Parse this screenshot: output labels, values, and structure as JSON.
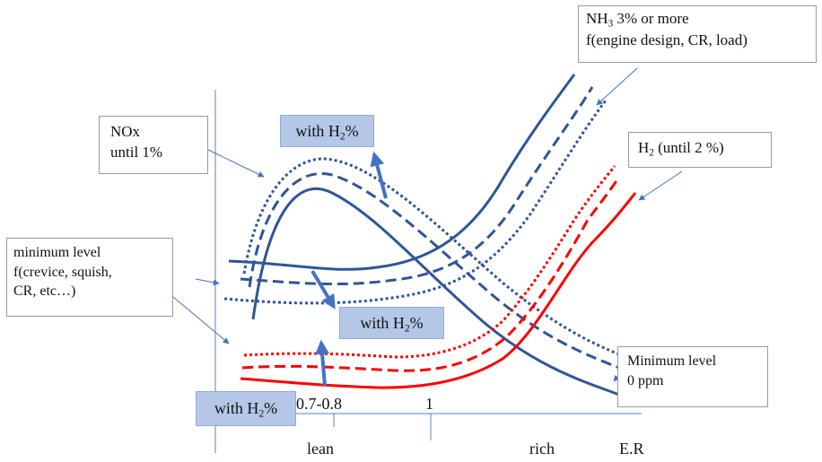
{
  "boxes": {
    "nh3": {
      "main": "NH",
      "sub": "3",
      "rest": " 3% or more",
      "line2": "f(engine design, CR, load)"
    },
    "h2": {
      "main": "H",
      "sub": "2",
      "rest": " (until 2 %)"
    },
    "nox": {
      "line1": "NOx",
      "line2": "until 1%"
    },
    "minimum_level": {
      "line1": "minimum level",
      "line2": "f(crevice, squish,",
      "line3": "CR, etc…)"
    },
    "minimum_level_zero": {
      "line1": "Minimum level",
      "line2": "0 ppm"
    }
  },
  "with_h2_labels": [
    {
      "pre": "with H",
      "sub": "2",
      "post": "%"
    },
    {
      "pre": "with H",
      "sub": "2",
      "post": "%"
    },
    {
      "pre": "with H",
      "sub": "2",
      "post": "%"
    }
  ],
  "axis": {
    "tick_07_08": "0.7-0.8",
    "tick_1": "1",
    "lean": "lean",
    "rich": "rich",
    "er": "E.R"
  },
  "colors": {
    "blue": "#2f5597",
    "red": "#ff0000",
    "axis": "#5b7fc0",
    "arrow": "#4472c4",
    "pill": "#b4c7e7"
  }
}
